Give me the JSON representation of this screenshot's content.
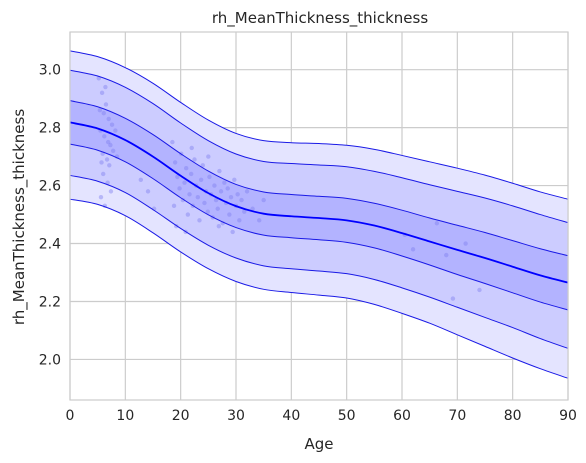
{
  "chart_data": {
    "type": "line",
    "title": "rh_MeanThickness_thickness",
    "xlabel": "Age",
    "ylabel": "rh_MeanThickness_thickness",
    "xlim": [
      0,
      90
    ],
    "ylim": [
      1.86,
      3.13
    ],
    "x_ticks": [
      0,
      10,
      20,
      30,
      40,
      50,
      60,
      70,
      80,
      90
    ],
    "x_tick_labels": [
      "0",
      "10",
      "20",
      "30",
      "40",
      "50",
      "60",
      "70",
      "80",
      "90"
    ],
    "y_ticks": [
      2.0,
      2.2,
      2.4,
      2.6,
      2.8,
      3.0
    ],
    "y_tick_labels": [
      "2.0",
      "2.2",
      "2.4",
      "2.6",
      "2.8",
      "3.0"
    ],
    "grid": true,
    "colors": {
      "median": "#0000ff",
      "band_outer": "#e4e4ff",
      "band_middle": "#ccccff",
      "band_inner": "#b3b3ff",
      "centile_line": "#1a1ae6",
      "points": "#8080f0",
      "grid": "#cccccc",
      "spine": "#cccccc"
    },
    "x": [
      0,
      5,
      10,
      15,
      20,
      25,
      30,
      35,
      40,
      45,
      50,
      55,
      60,
      65,
      70,
      75,
      80,
      85,
      90
    ],
    "series": [
      {
        "values": [
          2.818,
          2.797,
          2.757,
          2.7,
          2.634,
          2.574,
          2.529,
          2.503,
          2.494,
          2.488,
          2.48,
          2.462,
          2.436,
          2.407,
          2.378,
          2.35,
          2.32,
          2.29,
          2.265
        ]
      },
      {
        "values": [
          2.553,
          2.535,
          2.496,
          2.437,
          2.371,
          2.313,
          2.269,
          2.242,
          2.231,
          2.222,
          2.212,
          2.19,
          2.159,
          2.125,
          2.085,
          2.045,
          2.005,
          1.968,
          1.935
        ]
      },
      {
        "values": [
          2.635,
          2.615,
          2.576,
          2.517,
          2.452,
          2.394,
          2.35,
          2.323,
          2.313,
          2.305,
          2.296,
          2.276,
          2.247,
          2.215,
          2.18,
          2.145,
          2.11,
          2.072,
          2.038
        ]
      },
      {
        "values": [
          2.743,
          2.722,
          2.682,
          2.624,
          2.558,
          2.499,
          2.455,
          2.429,
          2.42,
          2.413,
          2.404,
          2.385,
          2.357,
          2.326,
          2.293,
          2.262,
          2.23,
          2.198,
          2.171
        ]
      },
      {
        "values": [
          2.893,
          2.872,
          2.832,
          2.776,
          2.71,
          2.65,
          2.604,
          2.578,
          2.569,
          2.563,
          2.556,
          2.539,
          2.515,
          2.488,
          2.463,
          2.438,
          2.41,
          2.382,
          2.358
        ]
      },
      {
        "values": [
          2.998,
          2.978,
          2.939,
          2.883,
          2.816,
          2.755,
          2.709,
          2.683,
          2.676,
          2.671,
          2.665,
          2.649,
          2.627,
          2.603,
          2.58,
          2.557,
          2.53,
          2.5,
          2.472
        ]
      },
      {
        "values": [
          3.065,
          3.045,
          3.007,
          2.953,
          2.887,
          2.826,
          2.78,
          2.755,
          2.748,
          2.745,
          2.739,
          2.725,
          2.704,
          2.682,
          2.66,
          2.636,
          2.608,
          2.578,
          2.553
        ]
      }
    ],
    "bands": [
      {
        "lower": 1,
        "upper": 6,
        "color": "band_outer"
      },
      {
        "lower": 2,
        "upper": 5,
        "color": "band_middle"
      },
      {
        "lower": 3,
        "upper": 4,
        "color": "band_inner"
      }
    ],
    "points": [
      [
        5.2,
        2.97
      ],
      [
        5.8,
        2.92
      ],
      [
        6.1,
        2.85
      ],
      [
        6.5,
        2.88
      ],
      [
        7.0,
        2.83
      ],
      [
        5.5,
        2.79
      ],
      [
        6.2,
        2.77
      ],
      [
        7.3,
        2.74
      ],
      [
        5.9,
        2.71
      ],
      [
        6.7,
        2.69
      ],
      [
        7.1,
        2.67
      ],
      [
        6.0,
        2.64
      ],
      [
        6.8,
        2.61
      ],
      [
        7.4,
        2.58
      ],
      [
        5.6,
        2.56
      ],
      [
        6.3,
        2.53
      ],
      [
        7.6,
        2.81
      ],
      [
        6.9,
        2.75
      ],
      [
        5.4,
        2.86
      ],
      [
        7.8,
        2.72
      ],
      [
        6.4,
        2.94
      ],
      [
        5.7,
        2.68
      ],
      [
        8.2,
        2.79
      ],
      [
        8.5,
        2.7
      ],
      [
        12.8,
        2.62
      ],
      [
        14.1,
        2.58
      ],
      [
        15.2,
        2.52
      ],
      [
        18.5,
        2.75
      ],
      [
        19.0,
        2.68
      ],
      [
        19.4,
        2.63
      ],
      [
        19.8,
        2.59
      ],
      [
        20.1,
        2.71
      ],
      [
        20.4,
        2.55
      ],
      [
        20.7,
        2.61
      ],
      [
        21.0,
        2.66
      ],
      [
        21.3,
        2.5
      ],
      [
        21.6,
        2.57
      ],
      [
        21.9,
        2.64
      ],
      [
        22.2,
        2.53
      ],
      [
        22.5,
        2.69
      ],
      [
        22.8,
        2.6
      ],
      [
        23.1,
        2.56
      ],
      [
        23.4,
        2.48
      ],
      [
        23.7,
        2.62
      ],
      [
        24.0,
        2.67
      ],
      [
        24.3,
        2.54
      ],
      [
        24.6,
        2.58
      ],
      [
        24.9,
        2.51
      ],
      [
        25.2,
        2.63
      ],
      [
        25.5,
        2.57
      ],
      [
        25.8,
        2.49
      ],
      [
        26.1,
        2.6
      ],
      [
        26.4,
        2.55
      ],
      [
        26.7,
        2.52
      ],
      [
        27.0,
        2.65
      ],
      [
        27.3,
        2.58
      ],
      [
        27.6,
        2.47
      ],
      [
        27.9,
        2.61
      ],
      [
        28.2,
        2.54
      ],
      [
        28.5,
        2.59
      ],
      [
        28.8,
        2.5
      ],
      [
        29.1,
        2.56
      ],
      [
        29.4,
        2.44
      ],
      [
        29.7,
        2.62
      ],
      [
        30.0,
        2.53
      ],
      [
        30.3,
        2.57
      ],
      [
        30.6,
        2.48
      ],
      [
        31.0,
        2.55
      ],
      [
        31.5,
        2.51
      ],
      [
        32.0,
        2.58
      ],
      [
        19.2,
        2.46
      ],
      [
        20.9,
        2.44
      ],
      [
        22.0,
        2.73
      ],
      [
        25.0,
        2.7
      ],
      [
        26.9,
        2.46
      ],
      [
        18.8,
        2.53
      ],
      [
        33.0,
        2.52
      ],
      [
        34.2,
        2.48
      ],
      [
        35.0,
        2.55
      ],
      [
        60.5,
        2.43
      ],
      [
        62.0,
        2.38
      ],
      [
        66.3,
        2.47
      ],
      [
        68.0,
        2.36
      ],
      [
        69.2,
        2.21
      ],
      [
        71.5,
        2.4
      ],
      [
        74.0,
        2.24
      ]
    ]
  }
}
